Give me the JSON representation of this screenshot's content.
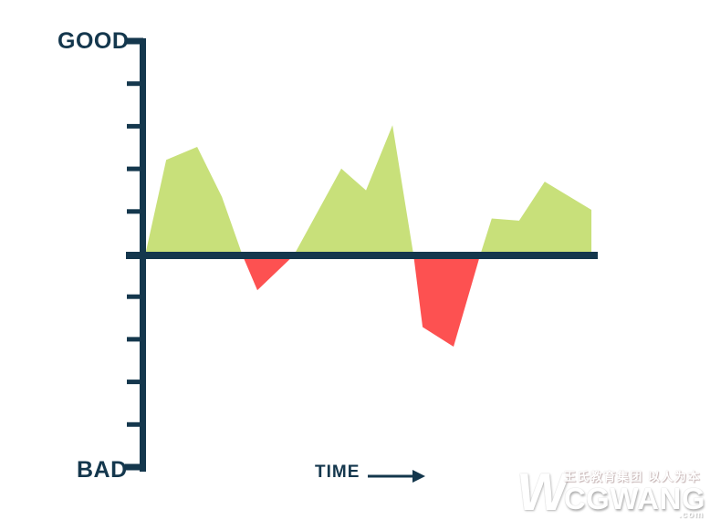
{
  "labels": {
    "y_top": "GOOD",
    "y_bottom": "BAD",
    "x_axis": "TIME"
  },
  "colors": {
    "axis": "#14374d",
    "positive": "#c8e07a",
    "negative": "#fd5151",
    "background": "#ffffff"
  },
  "watermark": {
    "logo": "W",
    "tagline": "王氏教育集团 以人为本",
    "brand": "CGWANG",
    "tld": ".com"
  },
  "chart_data": {
    "type": "area",
    "title": "",
    "xlabel": "TIME",
    "ylabel_top": "GOOD",
    "ylabel_bottom": "BAD",
    "x_range": [
      0,
      100
    ],
    "y_range": [
      -100,
      100
    ],
    "baseline": 0,
    "grid": false,
    "legend": false,
    "y_ticks": 11,
    "series_note": "single series; v>0 filled green (good), v<0 filled red (bad); x is unitless time 0-100, v is % of axis half-height",
    "points": [
      [
        0,
        0
      ],
      [
        4.7,
        44
      ],
      [
        11.6,
        50
      ],
      [
        17.1,
        27
      ],
      [
        21.7,
        0
      ],
      [
        25.0,
        -16
      ],
      [
        33.1,
        0
      ],
      [
        43.7,
        40
      ],
      [
        49.2,
        30
      ],
      [
        55.1,
        60
      ],
      [
        59.8,
        0
      ],
      [
        61.8,
        -33
      ],
      [
        68.7,
        -42
      ],
      [
        74.6,
        0
      ],
      [
        77.2,
        17
      ],
      [
        83.3,
        16
      ],
      [
        89.0,
        34
      ],
      [
        99.4,
        21
      ],
      [
        99.4,
        0
      ]
    ]
  }
}
